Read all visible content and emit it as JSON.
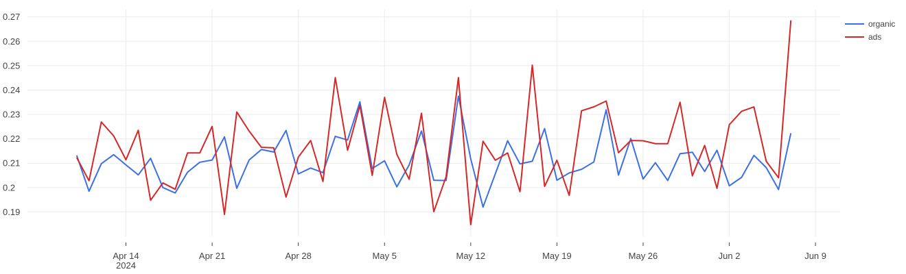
{
  "chart_data": {
    "type": "line",
    "title": "",
    "xlabel": "",
    "ylabel": "",
    "x_start": "2024-04-10",
    "x_end": "2024-06-08",
    "xlim": [
      "2024-04-06",
      "2024-06-11"
    ],
    "ylim": [
      0.18,
      0.273
    ],
    "y_ticks": [
      0.19,
      0.2,
      0.21,
      0.22,
      0.23,
      0.24,
      0.25,
      0.26,
      0.27
    ],
    "y_tick_labels": [
      "0.19",
      "0.2",
      "0.21",
      "0.22",
      "0.23",
      "0.24",
      "0.25",
      "0.26",
      "0.27"
    ],
    "x_ticks": [
      {
        "date": "2024-04-14",
        "label": "Apr 14",
        "sublabel": "2024"
      },
      {
        "date": "2024-04-21",
        "label": "Apr 21",
        "sublabel": ""
      },
      {
        "date": "2024-04-28",
        "label": "Apr 28",
        "sublabel": ""
      },
      {
        "date": "2024-05-05",
        "label": "May 5",
        "sublabel": ""
      },
      {
        "date": "2024-05-12",
        "label": "May 12",
        "sublabel": ""
      },
      {
        "date": "2024-05-19",
        "label": "May 19",
        "sublabel": ""
      },
      {
        "date": "2024-05-26",
        "label": "May 26",
        "sublabel": ""
      },
      {
        "date": "2024-06-02",
        "label": "Jun 2",
        "sublabel": ""
      },
      {
        "date": "2024-06-09",
        "label": "Jun 9",
        "sublabel": ""
      }
    ],
    "grid": true,
    "legend_position": "top-right",
    "series": [
      {
        "name": "organic",
        "color": "#3b6fe8",
        "values": [
          0.2132,
          0.1985,
          0.2098,
          0.2135,
          0.2093,
          0.2052,
          0.212,
          0.2,
          0.1978,
          0.2063,
          0.2104,
          0.2113,
          0.2208,
          0.1997,
          0.2113,
          0.2156,
          0.2146,
          0.2234,
          0.2056,
          0.208,
          0.2061,
          0.221,
          0.2195,
          0.2352,
          0.2078,
          0.211,
          0.2003,
          0.2093,
          0.2232,
          0.203,
          0.2029,
          0.2375,
          0.2118,
          0.192,
          0.2057,
          0.2192,
          0.2097,
          0.2108,
          0.2242,
          0.203,
          0.206,
          0.2075,
          0.2105,
          0.2319,
          0.2051,
          0.2201,
          0.2035,
          0.2102,
          0.2029,
          0.2139,
          0.2145,
          0.2066,
          0.2153,
          0.2007,
          0.2042,
          0.2132,
          0.2082,
          0.1992,
          0.2223
        ]
      },
      {
        "name": "ads",
        "color": "#d62728",
        "values": [
          0.2123,
          0.2028,
          0.2269,
          0.2212,
          0.2114,
          0.2235,
          0.1948,
          0.2019,
          0.1993,
          0.2142,
          0.2142,
          0.2251,
          0.189,
          0.231,
          0.2232,
          0.2165,
          0.2163,
          0.1961,
          0.2125,
          0.2193,
          0.2025,
          0.2451,
          0.2153,
          0.2337,
          0.205,
          0.237,
          0.2136,
          0.2034,
          0.2305,
          0.1901,
          0.2045,
          0.2451,
          0.1848,
          0.219,
          0.2112,
          0.2142,
          0.1983,
          0.2502,
          0.2005,
          0.2112,
          0.1968,
          0.2315,
          0.2331,
          0.2355,
          0.2143,
          0.2193,
          0.2192,
          0.218,
          0.218,
          0.235,
          0.2048,
          0.2173,
          0.1997,
          0.2258,
          0.2313,
          0.2331,
          0.2108,
          0.204,
          0.2686
        ]
      }
    ]
  }
}
